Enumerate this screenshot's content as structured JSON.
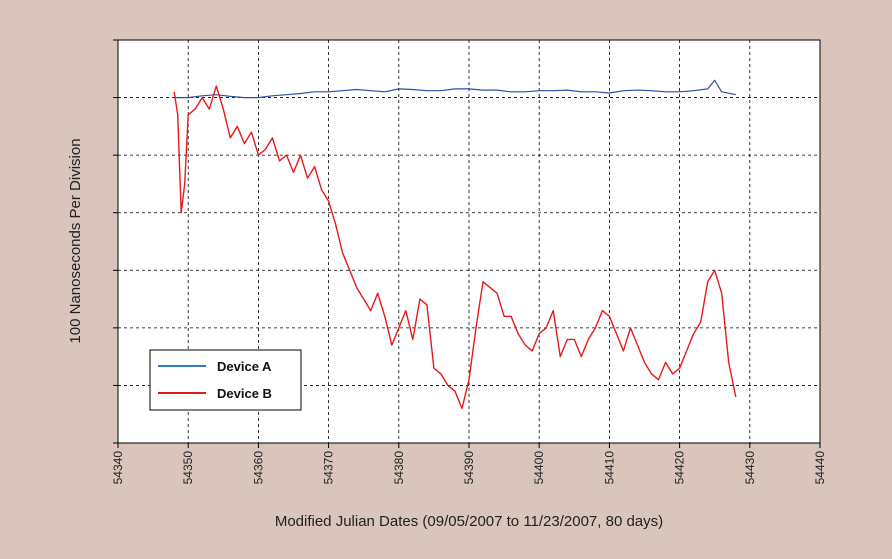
{
  "chart_data": {
    "type": "line",
    "xlabel": "Modified Julian Dates (09/05/2007 to 11/23/2007, 80 days)",
    "ylabel": "100 Nanoseconds Per Division",
    "xlim": [
      54340,
      54440
    ],
    "xticks": [
      "54340",
      "54350",
      "54360",
      "54370",
      "54380",
      "54390",
      "54400",
      "54410",
      "54420",
      "54430",
      "54440"
    ],
    "ylim": [
      0,
      7
    ],
    "y_tick_labels_shown": false,
    "grid": true,
    "legend_position": "bottom-left",
    "series": [
      {
        "name": "Device A",
        "color": "#2b4fa3",
        "x": [
          54348,
          54350,
          54352,
          54354,
          54356,
          54358,
          54360,
          54362,
          54364,
          54366,
          54368,
          54370,
          54372,
          54374,
          54376,
          54378,
          54380,
          54382,
          54384,
          54386,
          54388,
          54390,
          54392,
          54394,
          54396,
          54398,
          54400,
          54402,
          54404,
          54406,
          54408,
          54410,
          54412,
          54414,
          54416,
          54418,
          54420,
          54422,
          54424,
          54425,
          54426,
          54428
        ],
        "y": [
          6.0,
          6.0,
          6.03,
          6.05,
          6.02,
          6.0,
          6.0,
          6.03,
          6.05,
          6.07,
          6.1,
          6.1,
          6.12,
          6.14,
          6.12,
          6.1,
          6.15,
          6.14,
          6.12,
          6.12,
          6.15,
          6.15,
          6.13,
          6.13,
          6.1,
          6.1,
          6.12,
          6.12,
          6.13,
          6.1,
          6.1,
          6.08,
          6.12,
          6.13,
          6.12,
          6.1,
          6.1,
          6.12,
          6.15,
          6.3,
          6.1,
          6.05
        ]
      },
      {
        "name": "Device B",
        "color": "#e8191b",
        "x": [
          54348,
          54348.5,
          54349,
          54349.5,
          54350,
          54351,
          54352,
          54353,
          54354,
          54355,
          54356,
          54357,
          54358,
          54359,
          54360,
          54361,
          54362,
          54363,
          54364,
          54365,
          54366,
          54367,
          54368,
          54369,
          54370,
          54371,
          54372,
          54373,
          54374,
          54375,
          54376,
          54377,
          54378,
          54379,
          54380,
          54381,
          54382,
          54383,
          54384,
          54385,
          54386,
          54387,
          54388,
          54389,
          54390,
          54391,
          54392,
          54393,
          54394,
          54395,
          54396,
          54397,
          54398,
          54399,
          54400,
          54401,
          54402,
          54403,
          54404,
          54405,
          54406,
          54407,
          54408,
          54409,
          54410,
          54411,
          54412,
          54413,
          54414,
          54415,
          54416,
          54417,
          54418,
          54419,
          54420,
          54421,
          54422,
          54423,
          54424,
          54425,
          54426,
          54427,
          54428
        ],
        "y": [
          6.1,
          5.7,
          4.0,
          4.5,
          5.7,
          5.8,
          6.0,
          5.8,
          6.2,
          5.8,
          5.3,
          5.5,
          5.2,
          5.4,
          5.0,
          5.1,
          5.3,
          4.9,
          5.0,
          4.7,
          5.0,
          4.6,
          4.8,
          4.4,
          4.2,
          3.8,
          3.3,
          3.0,
          2.7,
          2.5,
          2.3,
          2.6,
          2.2,
          1.7,
          2.0,
          2.3,
          1.8,
          2.5,
          2.4,
          1.3,
          1.2,
          1.0,
          0.9,
          0.6,
          1.1,
          2.0,
          2.8,
          2.7,
          2.6,
          2.2,
          2.2,
          1.9,
          1.7,
          1.6,
          1.9,
          2.0,
          2.3,
          1.5,
          1.8,
          1.8,
          1.5,
          1.8,
          2.0,
          2.3,
          2.2,
          1.9,
          1.6,
          2.0,
          1.7,
          1.4,
          1.2,
          1.1,
          1.4,
          1.2,
          1.3,
          1.6,
          1.9,
          2.1,
          2.8,
          3.0,
          2.6,
          1.4,
          0.8
        ]
      }
    ]
  }
}
